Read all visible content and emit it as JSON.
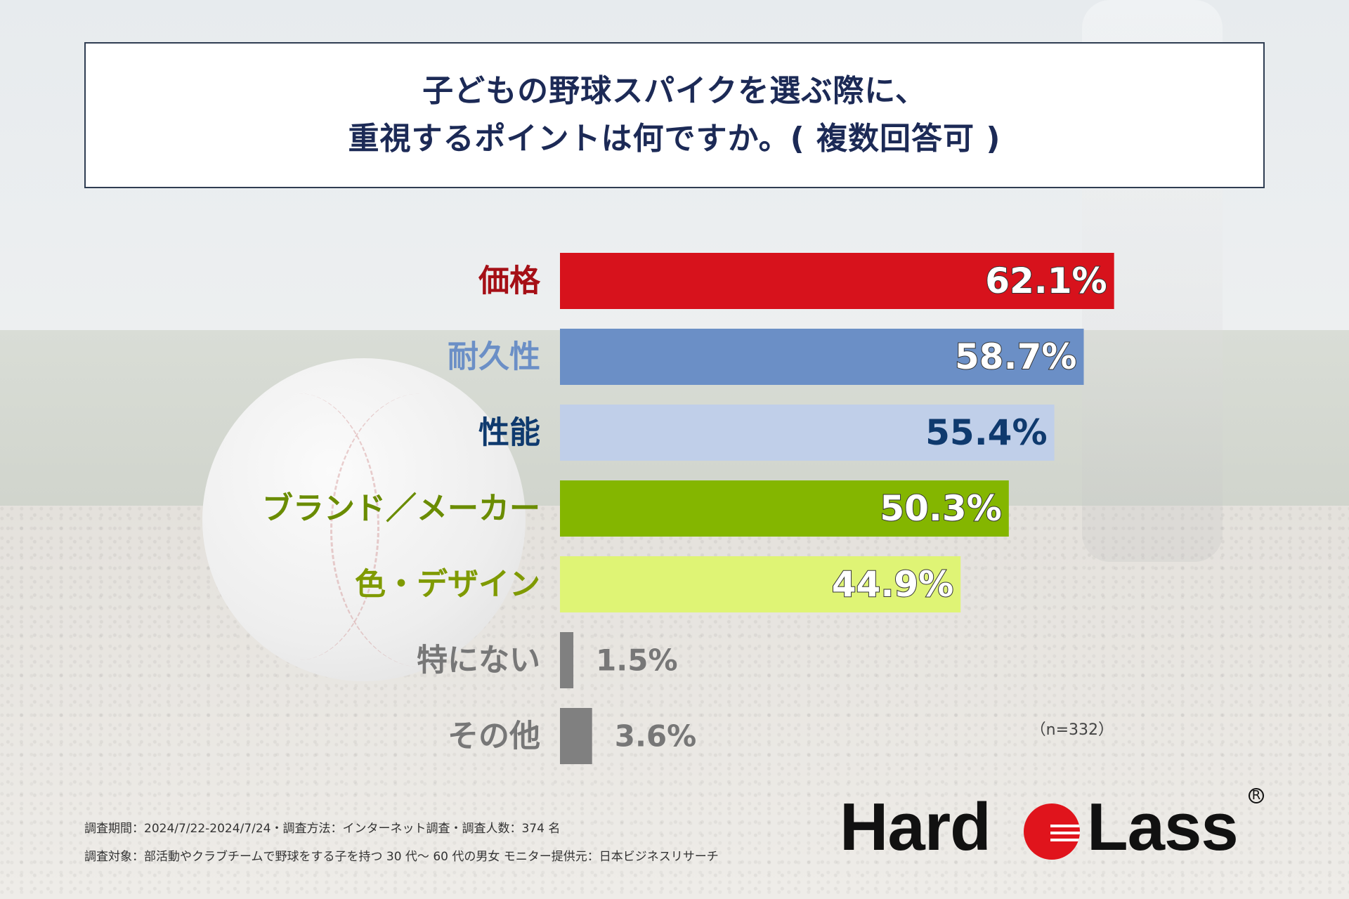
{
  "title": {
    "line1": "子どもの野球スパイクを選ぶ際に、",
    "line2": "重視するポイントは何ですか。( 複数回答可 )"
  },
  "chart_data": {
    "type": "bar",
    "orientation": "horizontal",
    "categories": [
      "価格",
      "耐久性",
      "性能",
      "ブランド／メーカー",
      "色・デザイン",
      "特にない",
      "その他"
    ],
    "values": [
      62.1,
      58.7,
      55.4,
      50.3,
      44.9,
      1.5,
      3.6
    ],
    "value_labels": [
      "62.1%",
      "58.7%",
      "55.4%",
      "50.3%",
      "44.9%",
      "1.5%",
      "3.6%"
    ],
    "bar_colors": [
      "#d7121c",
      "#6b8fc6",
      "#c0cfe9",
      "#84b600",
      "#dff475",
      "#808080",
      "#808080"
    ],
    "label_colors": [
      "#a50f16",
      "#6b8fc6",
      "#0f3a6e",
      "#6a8c00",
      "#7f9a00",
      "#777777",
      "#777777"
    ],
    "value_label_colors": [
      "#ffffff",
      "#ffffff",
      "#0f3a6e",
      "#ffffff",
      "#ffffff",
      "#777777",
      "#777777"
    ],
    "xlim": [
      0,
      100
    ],
    "note": "（n=332）"
  },
  "footer": {
    "line1": "調査期間：2024/7/22-2024/7/24・調査方法：インターネット調査・調査人数：374 名",
    "line2": "調査対象：部活動やクラブチームで野球をする子を持つ 30 代～ 60 代の男女 モニター提供元：日本ビジネスリサーチ"
  },
  "logo": {
    "left_text": "Hard",
    "right_text": "Lass",
    "registered": "R",
    "ball_color": "#e0141c"
  }
}
